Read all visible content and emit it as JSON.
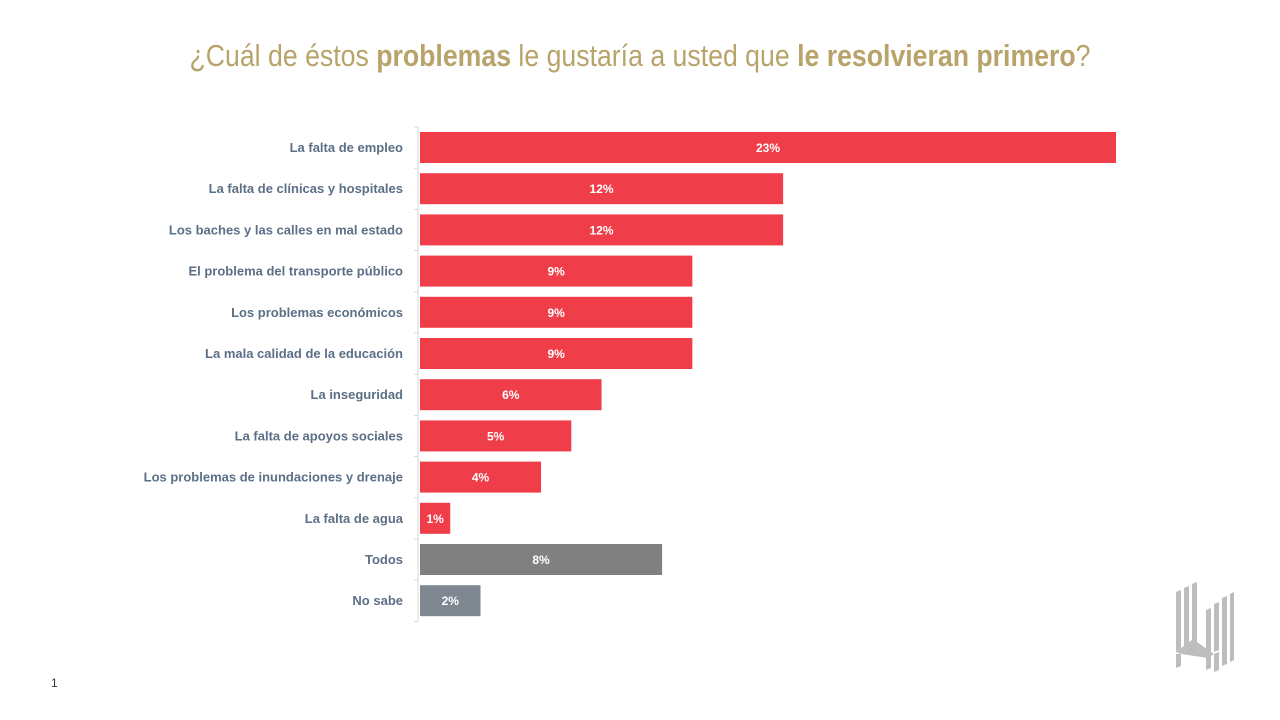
{
  "title": {
    "parts": [
      {
        "text": "¿Cuál de éstos ",
        "bold": false
      },
      {
        "text": "problemas",
        "bold": true
      },
      {
        "text": " le gustaría a usted que ",
        "bold": false
      },
      {
        "text": "le resolvieran primero",
        "bold": true
      },
      {
        "text": "?",
        "bold": false
      }
    ]
  },
  "page_number": "1",
  "logo": {
    "icon": "brand-logo-icon"
  },
  "colors": {
    "title": "#B8A46A",
    "primary_bar": "#EF3E4A",
    "todos_bar": "#808080",
    "no_sabe_bar": "#7F8891",
    "category_label": "#5B6F86",
    "value_label": "#FFFFFF",
    "axis": "#D9D9D9"
  },
  "chart_data": {
    "type": "bar",
    "orientation": "horizontal",
    "title": "¿Cuál de éstos problemas le gustaría a usted que le resolvieran primero?",
    "xlabel": "",
    "ylabel": "",
    "xlim": [
      0,
      23
    ],
    "grid": false,
    "legend": "none",
    "categories": [
      "La falta de empleo",
      "La falta de clínicas y hospitales",
      "Los baches y las calles en mal estado",
      "El problema del transporte público",
      "Los problemas económicos",
      "La mala calidad de la educación",
      "La inseguridad",
      "La falta de apoyos sociales",
      "Los problemas de inundaciones y drenaje",
      "La falta de agua",
      "Todos",
      "No sabe"
    ],
    "values": [
      23,
      12,
      12,
      9,
      9,
      9,
      6,
      5,
      4,
      1,
      8,
      2
    ],
    "value_labels": [
      "23%",
      "12%",
      "12%",
      "9%",
      "9%",
      "9%",
      "6%",
      "5%",
      "4%",
      "1%",
      "8%",
      "2%"
    ],
    "bar_color_keys": [
      "primary_bar",
      "primary_bar",
      "primary_bar",
      "primary_bar",
      "primary_bar",
      "primary_bar",
      "primary_bar",
      "primary_bar",
      "primary_bar",
      "primary_bar",
      "todos_bar",
      "no_sabe_bar"
    ],
    "unit": "%"
  }
}
